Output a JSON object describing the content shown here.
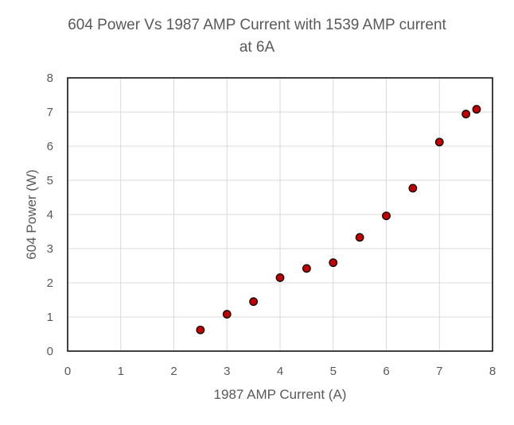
{
  "chart_data": {
    "type": "scatter",
    "title_line1": "604 Power Vs 1987 AMP Current with 1539 AMP current",
    "title_line2": "at 6A",
    "xlabel": "1987 AMP Current (A)",
    "ylabel": "604 Power (W)",
    "xlim": [
      0,
      8
    ],
    "ylim": [
      0,
      8
    ],
    "x_ticks": [
      "0",
      "1",
      "2",
      "3",
      "4",
      "5",
      "6",
      "7",
      "8"
    ],
    "y_ticks": [
      "0",
      "1",
      "2",
      "3",
      "4",
      "5",
      "6",
      "7",
      "8"
    ],
    "grid": true,
    "marker_color": "#c00000",
    "marker_edge": "#000000",
    "series": [
      {
        "x": [
          2.5,
          3.0,
          3.5,
          4.0,
          4.5,
          5.0,
          5.5,
          6.0,
          6.5,
          7.0,
          7.5,
          7.7
        ],
        "y": [
          0.62,
          1.08,
          1.45,
          2.15,
          2.42,
          2.59,
          3.33,
          3.96,
          4.77,
          6.12,
          6.94,
          7.08
        ]
      }
    ]
  }
}
